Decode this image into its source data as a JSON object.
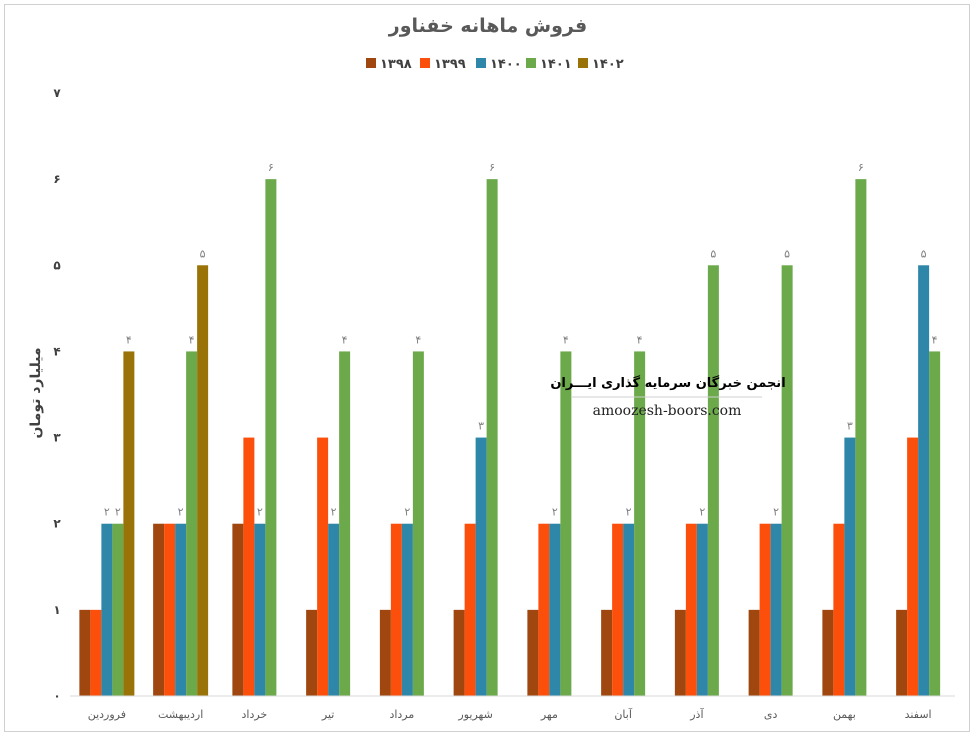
{
  "colors": {
    "1398": "#a0470f",
    "1399": "#fd4f0c",
    "1400": "#2e87a8",
    "1401": "#6ba94a",
    "1402": "#9a7308"
  },
  "watermark": {
    "title": "انجمن خبرگان سرمایه گذاری ایـــران",
    "url": "amoozesh-boors.com"
  },
  "chart_data": {
    "type": "bar",
    "title": "فروش ماهانه خفناور",
    "ylabel": "میلیارد تومان",
    "xlabel": "",
    "ylim": [
      0,
      7
    ],
    "yticks": [
      "۰",
      "۱",
      "۲",
      "۳",
      "۴",
      "۵",
      "۶",
      "۷"
    ],
    "grid": false,
    "legend": "top",
    "categories": [
      "فروردین",
      "اردیبهشت",
      "خرداد",
      "تیر",
      "مرداد",
      "شهریور",
      "مهر",
      "آبان",
      "آذر",
      "دی",
      "بهمن",
      "اسفند"
    ],
    "series": [
      {
        "name": "۱۳۹۸",
        "key": "1398",
        "values": [
          1,
          2,
          2,
          1,
          1,
          1,
          1,
          1,
          1,
          1,
          1,
          1
        ],
        "labels": [
          "",
          "",
          "",
          "",
          "",
          "",
          "",
          "",
          "",
          "",
          "",
          ""
        ]
      },
      {
        "name": "۱۳۹۹",
        "key": "1399",
        "values": [
          1,
          2,
          3,
          3,
          2,
          2,
          2,
          2,
          2,
          2,
          2,
          3
        ],
        "labels": [
          "",
          "",
          "",
          "",
          "",
          "",
          "",
          "",
          "",
          "",
          "",
          ""
        ]
      },
      {
        "name": "۱۴۰۰",
        "key": "1400",
        "values": [
          2,
          2,
          2,
          2,
          2,
          3,
          2,
          2,
          2,
          2,
          3,
          5
        ],
        "labels": [
          "۲",
          "۲",
          "۲",
          "۲",
          "۲",
          "۳",
          "۲",
          "۲",
          "۲",
          "۲",
          "۳",
          "۵"
        ]
      },
      {
        "name": "۱۴۰۱",
        "key": "1401",
        "values": [
          2,
          4,
          6,
          4,
          4,
          6,
          4,
          4,
          5,
          5,
          6,
          4
        ],
        "labels": [
          "۲",
          "۴",
          "۶",
          "۴",
          "۴",
          "۶",
          "۴",
          "۴",
          "۵",
          "۵",
          "۶",
          "۴"
        ]
      },
      {
        "name": "۱۴۰۲",
        "key": "1402",
        "values": [
          4,
          5,
          null,
          null,
          null,
          null,
          null,
          null,
          null,
          null,
          null,
          null
        ],
        "labels": [
          "۴",
          "۵",
          "",
          "",
          "",
          "",
          "",
          "",
          "",
          "",
          "",
          ""
        ]
      }
    ]
  }
}
